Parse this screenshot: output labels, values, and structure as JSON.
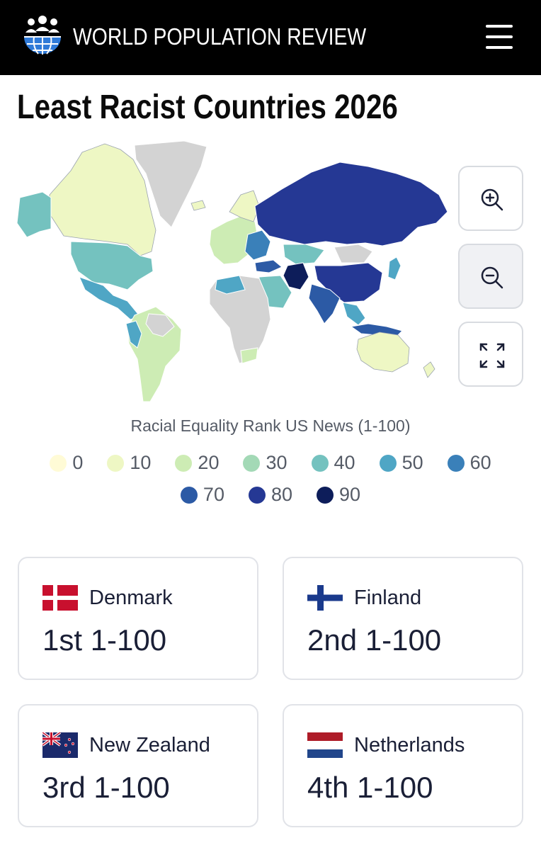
{
  "header": {
    "brand": "WORLD POPULATION REVIEW",
    "logo_icon": "globe-people-icon",
    "menu_icon": "hamburger-menu-icon"
  },
  "page": {
    "title": "Least Racist Countries 2026"
  },
  "map": {
    "type": "choropleth",
    "region": "world",
    "no_data_color": "#d3d3d3"
  },
  "map_controls": {
    "zoom_in_icon": "zoom-in-icon",
    "zoom_out_icon": "zoom-out-icon",
    "fullscreen_icon": "fullscreen-icon"
  },
  "legend": {
    "title": "Racial Equality Rank US News (1-100)",
    "items": [
      {
        "label": "0",
        "color": "#fffbd6"
      },
      {
        "label": "10",
        "color": "#eef7c4"
      },
      {
        "label": "20",
        "color": "#cdecb4"
      },
      {
        "label": "30",
        "color": "#a3d9b6"
      },
      {
        "label": "40",
        "color": "#74c2bf"
      },
      {
        "label": "50",
        "color": "#4fa6c5"
      },
      {
        "label": "60",
        "color": "#3a80b9"
      },
      {
        "label": "70",
        "color": "#2c5aa5"
      },
      {
        "label": "80",
        "color": "#253894"
      },
      {
        "label": "90",
        "color": "#0d1d5a"
      }
    ]
  },
  "cards": [
    {
      "country": "Denmark",
      "rank": "1st 1-100",
      "flag": "denmark-flag"
    },
    {
      "country": "Finland",
      "rank": "2nd 1-100",
      "flag": "finland-flag"
    },
    {
      "country": "New Zealand",
      "rank": "3rd 1-100",
      "flag": "new-zealand-flag"
    },
    {
      "country": "Netherlands",
      "rank": "4th 1-100",
      "flag": "netherlands-flag"
    }
  ]
}
